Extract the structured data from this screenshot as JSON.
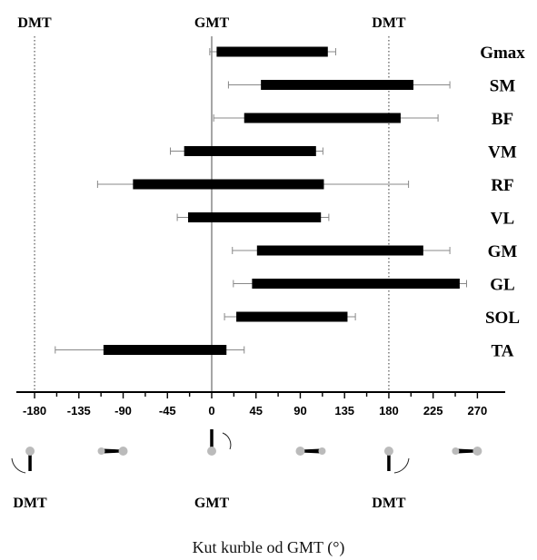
{
  "chart_data": {
    "type": "bar",
    "subtype": "floating-horizontal-range-with-error-bars",
    "title": "",
    "xlabel": "Kut kurble od GMT (°)",
    "ylabel": "",
    "xlim": [
      -200,
      290
    ],
    "xticks": [
      -180,
      -135,
      -90,
      -45,
      0,
      45,
      90,
      135,
      180,
      225,
      270
    ],
    "reference_lines": [
      {
        "x": -180,
        "label": "DMT",
        "style": "dotted"
      },
      {
        "x": 0,
        "label": "GMT",
        "style": "solid"
      },
      {
        "x": 180,
        "label": "DMT",
        "style": "dotted"
      }
    ],
    "muscles": [
      {
        "name": "Gmax",
        "onset": 5,
        "offset": 118,
        "onset_err_low": -2,
        "offset_err_high": 126
      },
      {
        "name": "SM",
        "onset": 50,
        "offset": 205,
        "onset_err_low": 17,
        "offset_err_high": 242
      },
      {
        "name": "BF",
        "onset": 33,
        "offset": 192,
        "onset_err_low": 2,
        "offset_err_high": 230
      },
      {
        "name": "VM",
        "onset": -28,
        "offset": 106,
        "onset_err_low": -42,
        "offset_err_high": 113
      },
      {
        "name": "RF",
        "onset": -80,
        "offset": 114,
        "onset_err_low": -116,
        "offset_err_high": 200
      },
      {
        "name": "VL",
        "onset": -24,
        "offset": 111,
        "onset_err_low": -35,
        "offset_err_high": 119
      },
      {
        "name": "GM",
        "onset": 46,
        "offset": 215,
        "onset_err_low": 21,
        "offset_err_high": 242
      },
      {
        "name": "GL",
        "onset": 41,
        "offset": 252,
        "onset_err_low": 22,
        "offset_err_high": 259
      },
      {
        "name": "SOL",
        "onset": 25,
        "offset": 138,
        "onset_err_low": 13,
        "offset_err_high": 146
      },
      {
        "name": "TA",
        "onset": -110,
        "offset": 15,
        "onset_err_low": -159,
        "offset_err_high": 33
      }
    ],
    "crank_positions": [
      {
        "angle": -180,
        "label": "DMT"
      },
      {
        "angle": -90,
        "label": ""
      },
      {
        "angle": 0,
        "label": "GMT"
      },
      {
        "angle": 90,
        "label": ""
      },
      {
        "angle": 180,
        "label": "DMT"
      },
      {
        "angle": 270,
        "label": ""
      }
    ],
    "colors": {
      "bar": "#000000",
      "error": "#888888",
      "crank_dot": "#bbbbbb",
      "dotted_line": "#555555"
    }
  }
}
